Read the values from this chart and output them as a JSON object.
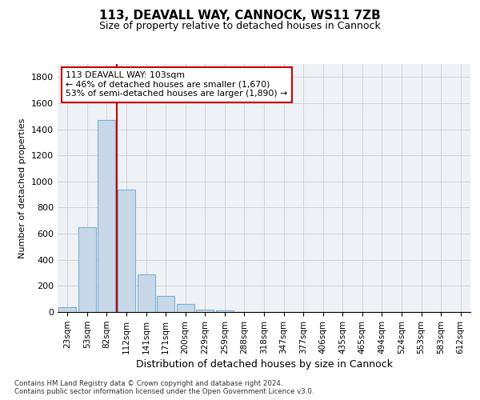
{
  "title": "113, DEAVALL WAY, CANNOCK, WS11 7ZB",
  "subtitle": "Size of property relative to detached houses in Cannock",
  "xlabel": "Distribution of detached houses by size in Cannock",
  "ylabel": "Number of detached properties",
  "bar_color": "#c8d8e8",
  "bar_edge_color": "#7bafd4",
  "background_color": "#ffffff",
  "grid_color": "#cccccc",
  "vline_x_idx": 2.5,
  "vline_color": "#cc0000",
  "annotation_text": "113 DEAVALL WAY: 103sqm\n← 46% of detached houses are smaller (1,670)\n53% of semi-detached houses are larger (1,890) →",
  "annotation_box_color": "#cc0000",
  "categories": [
    "23sqm",
    "53sqm",
    "82sqm",
    "112sqm",
    "141sqm",
    "171sqm",
    "200sqm",
    "229sqm",
    "259sqm",
    "288sqm",
    "318sqm",
    "347sqm",
    "377sqm",
    "406sqm",
    "435sqm",
    "465sqm",
    "494sqm",
    "524sqm",
    "553sqm",
    "583sqm",
    "612sqm"
  ],
  "values": [
    35,
    650,
    1470,
    935,
    290,
    125,
    60,
    20,
    10,
    0,
    0,
    0,
    0,
    0,
    0,
    0,
    0,
    0,
    0,
    0,
    0
  ],
  "ylim": [
    0,
    1900
  ],
  "yticks": [
    0,
    200,
    400,
    600,
    800,
    1000,
    1200,
    1400,
    1600,
    1800
  ],
  "footer_line1": "Contains HM Land Registry data © Crown copyright and database right 2024.",
  "footer_line2": "Contains public sector information licensed under the Open Government Licence v3.0."
}
